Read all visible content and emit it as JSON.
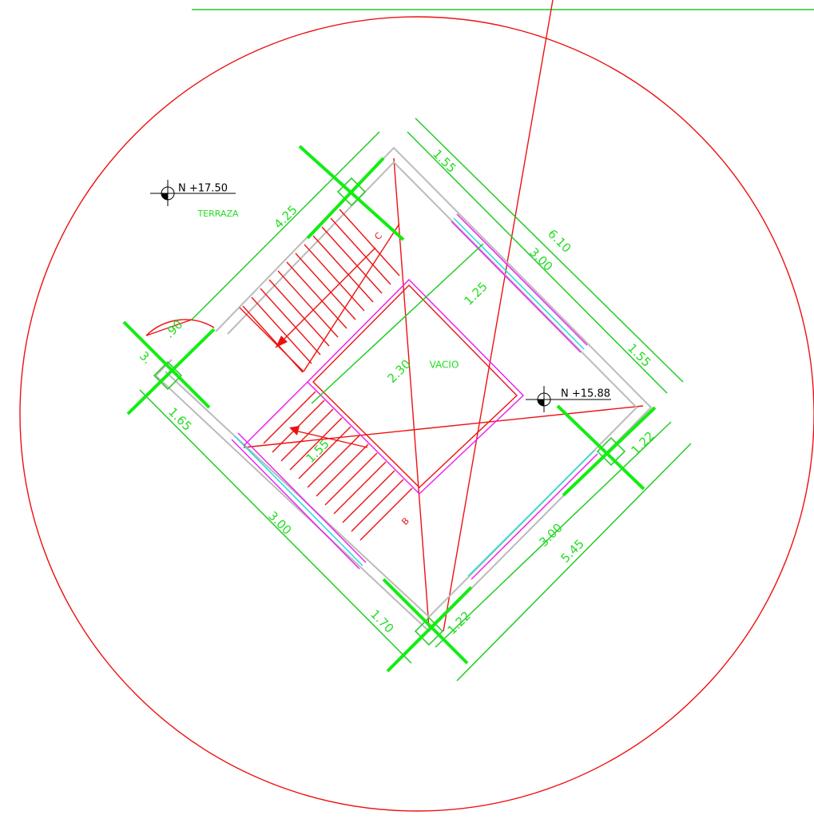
{
  "levels": [
    "N +17.50",
    "N +15.88"
  ],
  "areas": [
    "TERRAZA",
    "VACIO"
  ],
  "dimensions": [
    "4.25",
    "1.55",
    "6.10",
    "3.00",
    "1.25",
    "1.55",
    "2.30",
    "1.22",
    ".90",
    "3.",
    "1.65",
    "1.55",
    "3.00",
    "1.70",
    "1.22",
    "3.00",
    "5.45"
  ],
  "stair_marks": [
    "C",
    "B"
  ]
}
